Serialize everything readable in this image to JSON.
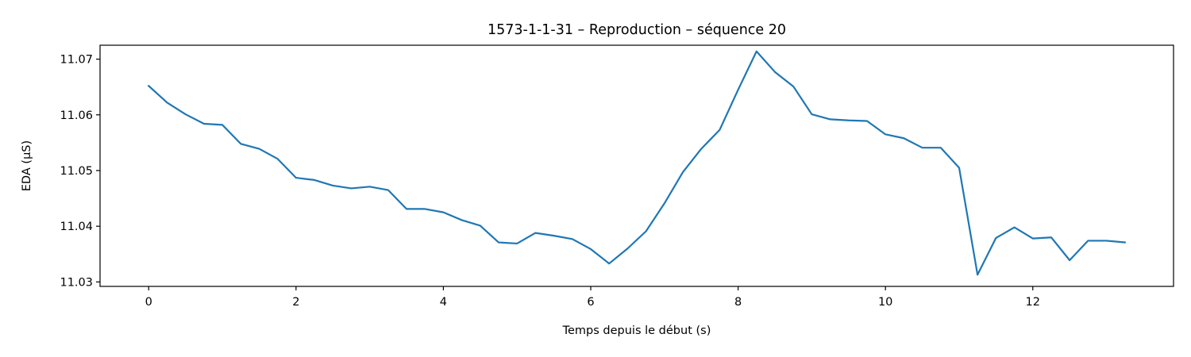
{
  "chart_data": {
    "type": "line",
    "title": "1573-1-1-31 – Reproduction – séquence 20",
    "xlabel": "Temps depuis le début (s)",
    "ylabel": "EDA (µS)",
    "xlim": [
      -0.66,
      13.91
    ],
    "ylim": [
      11.0292,
      11.0725
    ],
    "xticks": [
      0,
      2,
      4,
      6,
      8,
      10,
      12
    ],
    "yticks": [
      11.03,
      11.04,
      11.05,
      11.06,
      11.07
    ],
    "xtick_labels": [
      "0",
      "2",
      "4",
      "6",
      "8",
      "10",
      "12"
    ],
    "ytick_labels": [
      "11.03",
      "11.04",
      "11.05",
      "11.06",
      "11.07"
    ],
    "grid": false,
    "series": [
      {
        "color": "#1f77b4",
        "x": [
          0,
          0.25,
          0.5,
          0.75,
          1.0,
          1.25,
          1.5,
          1.75,
          2.0,
          2.25,
          2.5,
          2.75,
          3.0,
          3.25,
          3.5,
          3.75,
          4.0,
          4.25,
          4.5,
          4.75,
          5.0,
          5.25,
          5.5,
          5.75,
          6.0,
          6.25,
          6.5,
          6.75,
          7.0,
          7.25,
          7.5,
          7.75,
          8.0,
          8.25,
          8.5,
          8.75,
          9.0,
          9.25,
          9.5,
          9.75,
          10.0,
          10.25,
          10.5,
          10.75,
          11.0,
          11.25,
          11.5,
          11.75,
          12.0,
          12.25,
          12.5,
          12.75,
          13.0,
          13.25
        ],
        "y": [
          11.0652,
          11.0622,
          11.0601,
          11.0584,
          11.0582,
          11.0548,
          11.0539,
          11.0521,
          11.0487,
          11.0483,
          11.0473,
          11.0468,
          11.0471,
          11.0465,
          11.0431,
          11.0431,
          11.0425,
          11.0411,
          11.0401,
          11.0371,
          11.0369,
          11.0388,
          11.0383,
          11.0377,
          11.0359,
          11.0333,
          11.036,
          11.0391,
          11.0441,
          11.0497,
          11.0539,
          11.0573,
          11.0645,
          11.0714,
          11.0677,
          11.0651,
          11.0601,
          11.0592,
          11.059,
          11.0589,
          11.0565,
          11.0558,
          11.0541,
          11.0541,
          11.0505,
          11.0313,
          11.0379,
          11.0398,
          11.0378,
          11.038,
          11.0339,
          11.0374,
          11.0374,
          11.0371
        ]
      }
    ]
  }
}
